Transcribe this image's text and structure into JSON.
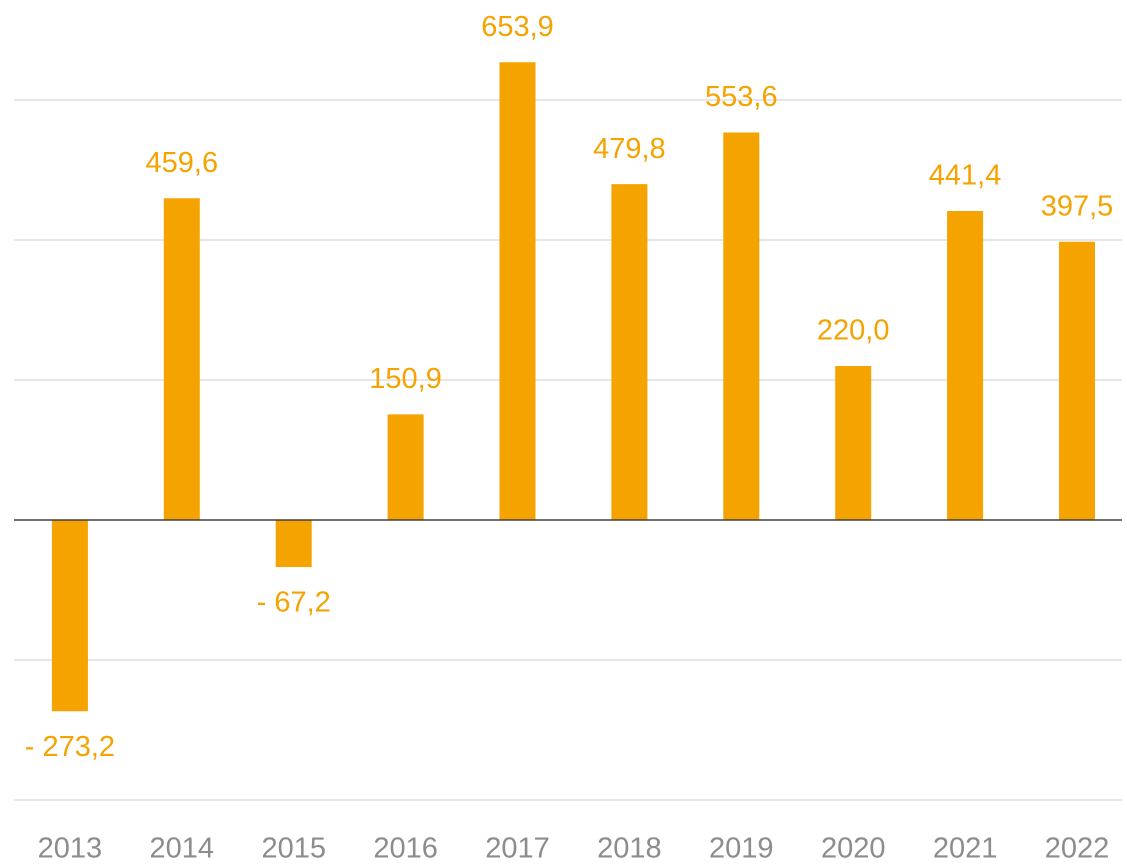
{
  "chart_data": {
    "type": "bar",
    "categories": [
      "2013",
      "2014",
      "2015",
      "2016",
      "2017",
      "2018",
      "2019",
      "2020",
      "2021",
      "2022"
    ],
    "values": [
      -273.2,
      459.6,
      -67.2,
      150.9,
      653.9,
      479.8,
      553.6,
      220.0,
      441.4,
      397.5
    ],
    "value_labels": [
      "- 273,2",
      "459,6",
      "- 67,2",
      "150,9",
      "653,9",
      "479,8",
      "553,6",
      "220,0",
      "441,4",
      "397,5"
    ],
    "color": "#f5a300",
    "ylim": [
      -400,
      700
    ],
    "yticks": [
      -400,
      -200,
      0,
      200,
      400,
      600
    ],
    "grid": true
  }
}
